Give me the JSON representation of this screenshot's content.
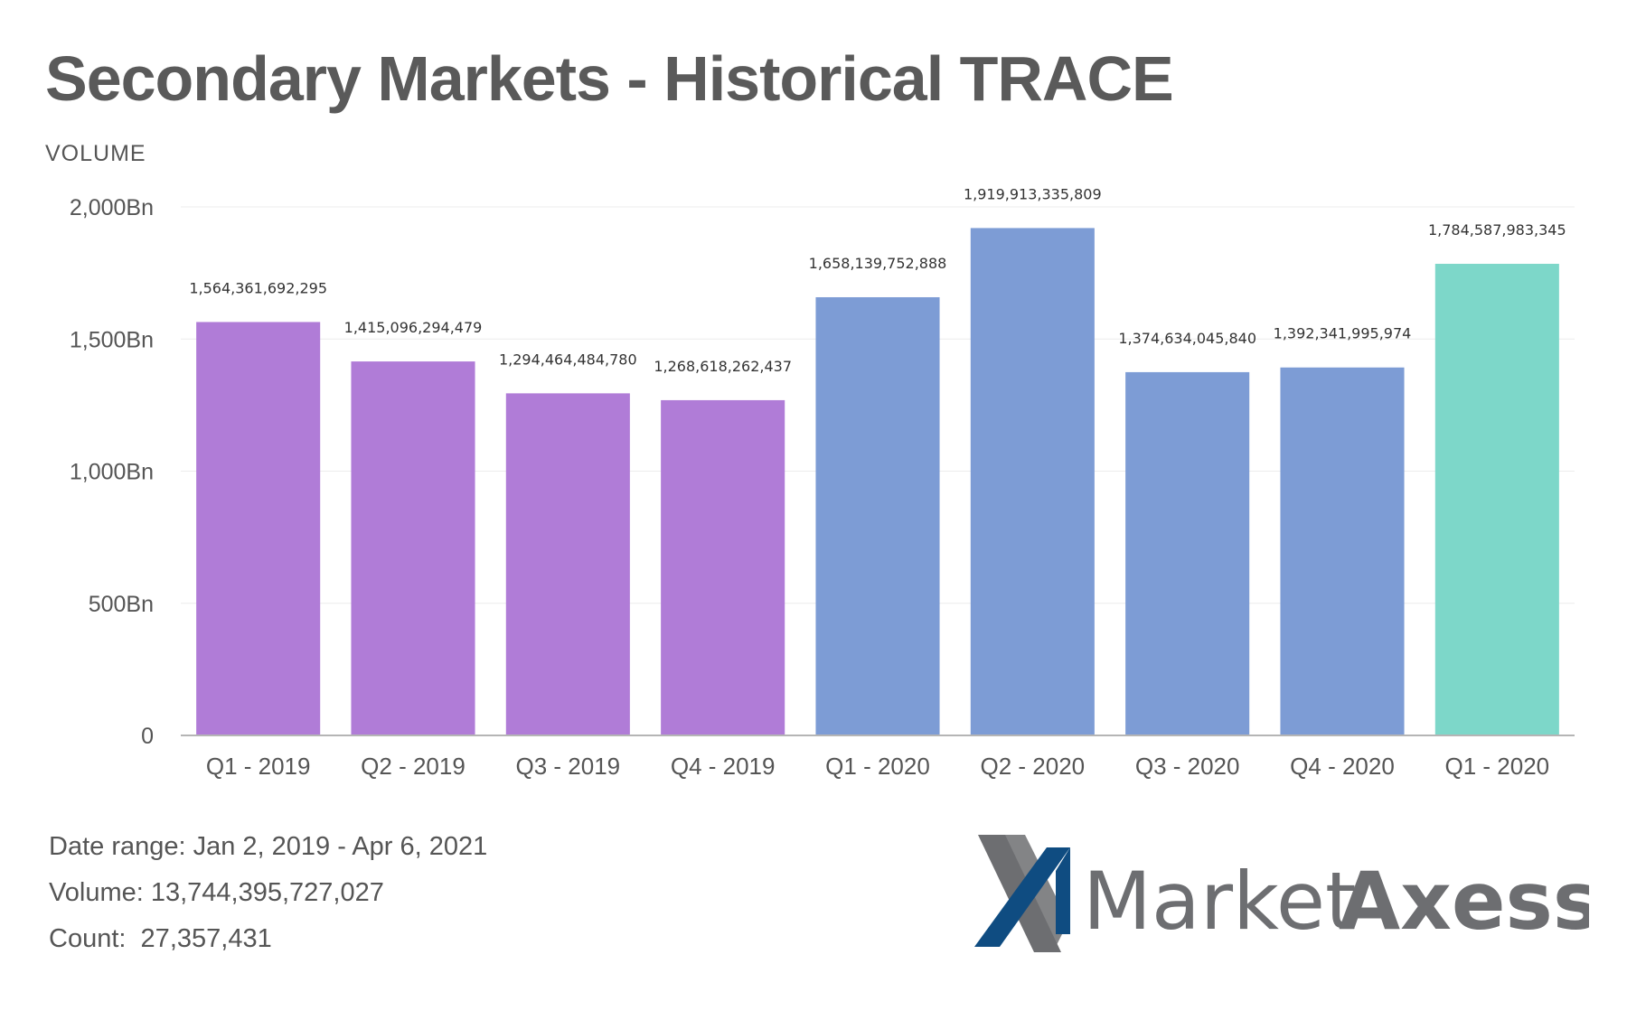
{
  "title": "Secondary Markets - Historical TRACE",
  "chart_data": {
    "type": "bar",
    "ylabel": "VOLUME",
    "ylim": [
      0,
      2000000000000
    ],
    "yticks": [
      {
        "value": 0,
        "label": "0"
      },
      {
        "value": 500000000000,
        "label": "500Bn"
      },
      {
        "value": 1000000000000,
        "label": "1,000Bn"
      },
      {
        "value": 1500000000000,
        "label": "1,500Bn"
      },
      {
        "value": 2000000000000,
        "label": "2,000Bn"
      }
    ],
    "grid": true,
    "categories": [
      "Q1 - 2019",
      "Q2 - 2019",
      "Q3 - 2019",
      "Q4 - 2019",
      "Q1 - 2020",
      "Q2 - 2020",
      "Q3 - 2020",
      "Q4 - 2020",
      "Q1 - 2020"
    ],
    "values": [
      1564361692295,
      1415096294479,
      1294464484780,
      1268618262437,
      1658139752888,
      1919913335809,
      1374634045840,
      1392341995974,
      1784587983345
    ],
    "data_labels": [
      "1,564,361,692,295",
      "1,415,096,294,479",
      "1,294,464,484,780",
      "1,268,618,262,437",
      "1,658,139,752,888",
      "1,919,913,335,809",
      "1,374,634,045,840",
      "1,392,341,995,974",
      "1,784,587,983,345"
    ],
    "bar_colors": [
      "#b07cd7",
      "#b07cd7",
      "#b07cd7",
      "#b07cd7",
      "#7d9cd5",
      "#7d9cd5",
      "#7d9cd5",
      "#7d9cd5",
      "#7dd7c9"
    ]
  },
  "stats": {
    "date_range": "Date range: Jan 2, 2019 - Apr 6, 2021",
    "volume": "Volume: 13,744,395,727,027",
    "count": "Count:  27,357,431"
  },
  "logo": {
    "market": "Market",
    "axess": "Axess",
    "colors": {
      "x_dark": "#0f4c81",
      "x_gray": "#6d6e71"
    }
  }
}
